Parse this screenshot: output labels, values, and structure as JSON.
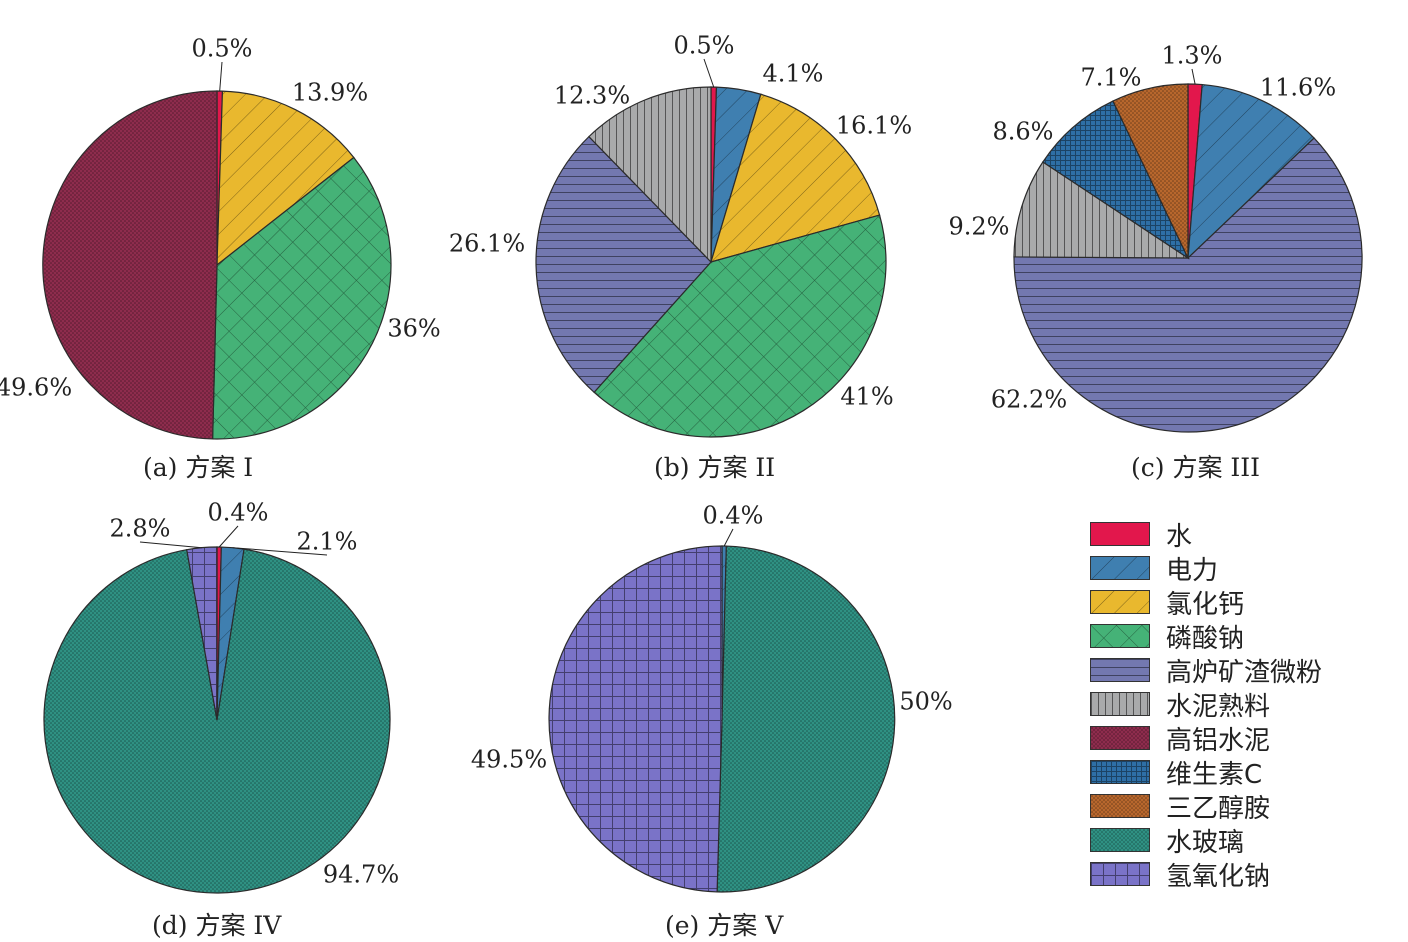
{
  "categories": {
    "water": {
      "label": "水",
      "color": "#e2174c",
      "pattern": "solid"
    },
    "power": {
      "label": "电力",
      "color": "#3f7fb0",
      "pattern": "diag-wide"
    },
    "cacl": {
      "label": "氯化钙",
      "color": "#e9b82e",
      "pattern": "diag-wide"
    },
    "nap": {
      "label": "磷酸钠",
      "color": "#45b277",
      "pattern": "cross-diag"
    },
    "slag": {
      "label": "高炉矿渣微粉",
      "color": "#7378b0",
      "pattern": "hlines"
    },
    "clinker": {
      "label": "水泥熟料",
      "color": "#a9aaab",
      "pattern": "vlines"
    },
    "alcement": {
      "label": "高铝水泥",
      "color": "#8e2c4d",
      "pattern": "dots"
    },
    "vitc": {
      "label": "维生素C",
      "color": "#2e6fa6",
      "pattern": "fine-grid"
    },
    "tea": {
      "label": "三乙醇胺",
      "color": "#b8672d",
      "pattern": "dots"
    },
    "glass": {
      "label": "水玻璃",
      "color": "#2f9183",
      "pattern": "dots"
    },
    "naoh": {
      "label": "氢氧化钠",
      "color": "#7a73c8",
      "pattern": "grid"
    }
  },
  "legend_order": [
    "water",
    "power",
    "cacl",
    "nap",
    "slag",
    "clinker",
    "alcement",
    "vitc",
    "tea",
    "glass",
    "naoh"
  ],
  "chart_data": [
    {
      "type": "pie",
      "caption": "(a) 方案 I",
      "slices": [
        {
          "cat": "water",
          "value": 0.5,
          "label": "0.5%"
        },
        {
          "cat": "cacl",
          "value": 13.9,
          "label": "13.9%"
        },
        {
          "cat": "nap",
          "value": 36,
          "label": "36%"
        },
        {
          "cat": "alcement",
          "value": 49.6,
          "label": "49.6%"
        }
      ]
    },
    {
      "type": "pie",
      "caption": "(b) 方案 II",
      "slices": [
        {
          "cat": "water",
          "value": 0.5,
          "label": "0.5%"
        },
        {
          "cat": "power",
          "value": 4.1,
          "label": "4.1%"
        },
        {
          "cat": "cacl",
          "value": 16.1,
          "label": "16.1%"
        },
        {
          "cat": "nap",
          "value": 41,
          "label": "41%"
        },
        {
          "cat": "slag",
          "value": 26.1,
          "label": "26.1%"
        },
        {
          "cat": "clinker",
          "value": 12.3,
          "label": "12.3%"
        }
      ]
    },
    {
      "type": "pie",
      "caption": "(c) 方案 III",
      "slices": [
        {
          "cat": "water",
          "value": 1.3,
          "label": "1.3%"
        },
        {
          "cat": "power",
          "value": 11.6,
          "label": "11.6%"
        },
        {
          "cat": "slag",
          "value": 62.2,
          "label": "62.2%"
        },
        {
          "cat": "clinker",
          "value": 9.2,
          "label": "9.2%"
        },
        {
          "cat": "vitc",
          "value": 8.6,
          "label": "8.6%"
        },
        {
          "cat": "tea",
          "value": 7.1,
          "label": "7.1%"
        }
      ]
    },
    {
      "type": "pie",
      "caption": "(d) 方案 IV",
      "slices": [
        {
          "cat": "water",
          "value": 0.4,
          "label": "0.4%"
        },
        {
          "cat": "power",
          "value": 2.1,
          "label": "2.1%"
        },
        {
          "cat": "glass",
          "value": 94.7,
          "label": "94.7%"
        },
        {
          "cat": "naoh",
          "value": 2.8,
          "label": "2.8%"
        }
      ]
    },
    {
      "type": "pie",
      "caption": "(e) 方案 V",
      "slices": [
        {
          "cat": "power",
          "value": 0.4,
          "label": "0.4%"
        },
        {
          "cat": "glass",
          "value": 50,
          "label": "50%"
        },
        {
          "cat": "naoh",
          "value": 49.5,
          "label": "49.5%"
        }
      ]
    }
  ]
}
